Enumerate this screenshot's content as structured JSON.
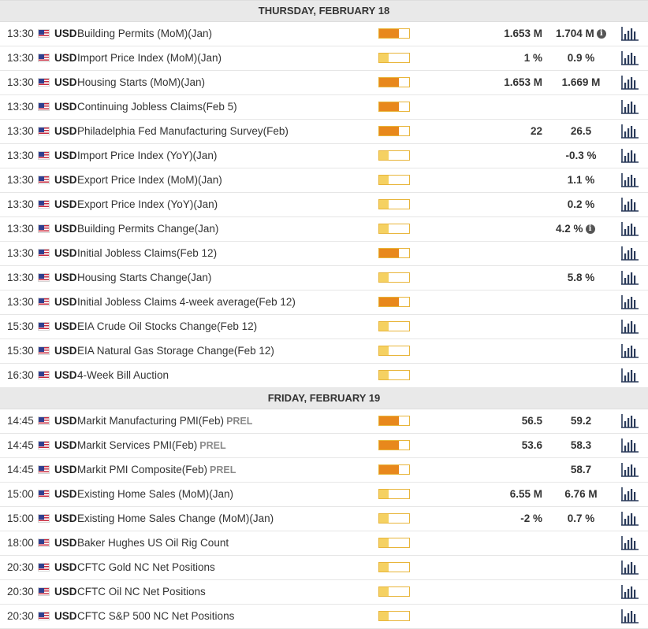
{
  "colors": {
    "high": "#e8881c",
    "medium": "#f2c444",
    "low": "#f5d162",
    "border": "#e8b53a"
  },
  "days": [
    {
      "header": "THURSDAY, FEBRUARY 18",
      "events": [
        {
          "time": "13:30",
          "currency": "USD",
          "event": "Building Permits (MoM)(Jan)",
          "prel": "",
          "impact": "high",
          "actual": "1.653 M",
          "consensus": "1.704 M",
          "info": true
        },
        {
          "time": "13:30",
          "currency": "USD",
          "event": "Import Price Index (MoM)(Jan)",
          "prel": "",
          "impact": "low",
          "actual": "1 %",
          "consensus": "0.9 %",
          "info": false
        },
        {
          "time": "13:30",
          "currency": "USD",
          "event": "Housing Starts (MoM)(Jan)",
          "prel": "",
          "impact": "high",
          "actual": "1.653 M",
          "consensus": "1.669 M",
          "info": false
        },
        {
          "time": "13:30",
          "currency": "USD",
          "event": "Continuing Jobless Claims(Feb 5)",
          "prel": "",
          "impact": "high",
          "actual": "",
          "consensus": "",
          "info": false
        },
        {
          "time": "13:30",
          "currency": "USD",
          "event": "Philadelphia Fed Manufacturing Survey(Feb)",
          "prel": "",
          "impact": "high",
          "actual": "22",
          "consensus": "26.5",
          "info": false
        },
        {
          "time": "13:30",
          "currency": "USD",
          "event": "Import Price Index (YoY)(Jan)",
          "prel": "",
          "impact": "low",
          "actual": "",
          "consensus": "-0.3 %",
          "info": false
        },
        {
          "time": "13:30",
          "currency": "USD",
          "event": "Export Price Index (MoM)(Jan)",
          "prel": "",
          "impact": "low",
          "actual": "",
          "consensus": "1.1 %",
          "info": false
        },
        {
          "time": "13:30",
          "currency": "USD",
          "event": "Export Price Index (YoY)(Jan)",
          "prel": "",
          "impact": "low",
          "actual": "",
          "consensus": "0.2 %",
          "info": false
        },
        {
          "time": "13:30",
          "currency": "USD",
          "event": "Building Permits Change(Jan)",
          "prel": "",
          "impact": "low",
          "actual": "",
          "consensus": "4.2 %",
          "info": true
        },
        {
          "time": "13:30",
          "currency": "USD",
          "event": "Initial Jobless Claims(Feb 12)",
          "prel": "",
          "impact": "high",
          "actual": "",
          "consensus": "",
          "info": false
        },
        {
          "time": "13:30",
          "currency": "USD",
          "event": "Housing Starts Change(Jan)",
          "prel": "",
          "impact": "low",
          "actual": "",
          "consensus": "5.8 %",
          "info": false
        },
        {
          "time": "13:30",
          "currency": "USD",
          "event": "Initial Jobless Claims 4-week average(Feb 12)",
          "prel": "",
          "impact": "high",
          "actual": "",
          "consensus": "",
          "info": false
        },
        {
          "time": "15:30",
          "currency": "USD",
          "event": "EIA Crude Oil Stocks Change(Feb 12)",
          "prel": "",
          "impact": "low",
          "actual": "",
          "consensus": "",
          "info": false
        },
        {
          "time": "15:30",
          "currency": "USD",
          "event": "EIA Natural Gas Storage Change(Feb 12)",
          "prel": "",
          "impact": "low",
          "actual": "",
          "consensus": "",
          "info": false
        },
        {
          "time": "16:30",
          "currency": "USD",
          "event": "4-Week Bill Auction",
          "prel": "",
          "impact": "low",
          "actual": "",
          "consensus": "",
          "info": false
        }
      ]
    },
    {
      "header": "FRIDAY, FEBRUARY 19",
      "events": [
        {
          "time": "14:45",
          "currency": "USD",
          "event": "Markit Manufacturing PMI(Feb)",
          "prel": "PREL",
          "impact": "high",
          "actual": "56.5",
          "consensus": "59.2",
          "info": false
        },
        {
          "time": "14:45",
          "currency": "USD",
          "event": "Markit Services PMI(Feb)",
          "prel": "PREL",
          "impact": "high",
          "actual": "53.6",
          "consensus": "58.3",
          "info": false
        },
        {
          "time": "14:45",
          "currency": "USD",
          "event": "Markit PMI Composite(Feb)",
          "prel": "PREL",
          "impact": "high",
          "actual": "",
          "consensus": "58.7",
          "info": false
        },
        {
          "time": "15:00",
          "currency": "USD",
          "event": "Existing Home Sales (MoM)(Jan)",
          "prel": "",
          "impact": "low",
          "actual": "6.55 M",
          "consensus": "6.76 M",
          "info": false
        },
        {
          "time": "15:00",
          "currency": "USD",
          "event": "Existing Home Sales Change (MoM)(Jan)",
          "prel": "",
          "impact": "low",
          "actual": "-2 %",
          "consensus": "0.7 %",
          "info": false
        },
        {
          "time": "18:00",
          "currency": "USD",
          "event": "Baker Hughes US Oil Rig Count",
          "prel": "",
          "impact": "low",
          "actual": "",
          "consensus": "",
          "info": false
        },
        {
          "time": "20:30",
          "currency": "USD",
          "event": "CFTC Gold NC Net Positions",
          "prel": "",
          "impact": "low",
          "actual": "",
          "consensus": "",
          "info": false
        },
        {
          "time": "20:30",
          "currency": "USD",
          "event": "CFTC Oil NC Net Positions",
          "prel": "",
          "impact": "low",
          "actual": "",
          "consensus": "",
          "info": false
        },
        {
          "time": "20:30",
          "currency": "USD",
          "event": "CFTC S&P 500 NC Net Positions",
          "prel": "",
          "impact": "low",
          "actual": "",
          "consensus": "",
          "info": false
        }
      ]
    }
  ]
}
